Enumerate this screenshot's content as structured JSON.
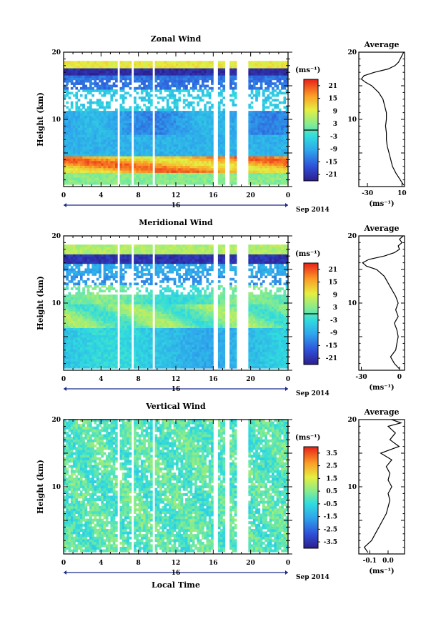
{
  "common": {
    "ylabel": "Height (km)",
    "y_ticks": [
      "10",
      "20"
    ],
    "x_ticks": [
      "0",
      "4",
      "8",
      "12",
      "16",
      "20",
      "0"
    ],
    "date_mark": "16",
    "date_suffix": "Sep 2014",
    "unit": "(ms⁻¹)",
    "xlabel": "Local Time",
    "average_title": "Average"
  },
  "chart_data": [
    {
      "type": "heatmap",
      "title": "Zonal Wind",
      "xlabel": "",
      "ylabel": "Height (km)",
      "xlim": [
        0,
        24
      ],
      "ylim": [
        0,
        20
      ],
      "colorbar": {
        "ticks": [
          "21",
          "15",
          "9",
          "3",
          "-3",
          "-9",
          "-15",
          "-21"
        ],
        "range": [
          -24,
          24
        ]
      },
      "profile": {
        "title": "Average",
        "xlabel": "(ms⁻¹)",
        "xticks": [
          "-30",
          "10"
        ],
        "xlim": [
          -40,
          13
        ],
        "heights": [
          0.2,
          1,
          2,
          3,
          4,
          5,
          6,
          7,
          8,
          9,
          10,
          11,
          12,
          13,
          14,
          15,
          15.5,
          16,
          16.5,
          17,
          17.5,
          18,
          18.5,
          19,
          19.5,
          20
        ],
        "values": [
          12,
          8,
          3,
          -1,
          -3,
          -5,
          -7,
          -8,
          -8,
          -9,
          -8,
          -8,
          -10,
          -12,
          -17,
          -25,
          -32,
          -37,
          -34,
          -22,
          -6,
          2,
          6,
          8,
          10,
          12
        ]
      }
    },
    {
      "type": "heatmap",
      "title": "Meridional Wind",
      "xlabel": "",
      "ylabel": "Height (km)",
      "xlim": [
        0,
        24
      ],
      "ylim": [
        0,
        20
      ],
      "colorbar": {
        "ticks": [
          "21",
          "15",
          "9",
          "3",
          "-3",
          "-9",
          "-15",
          "-21"
        ],
        "range": [
          -24,
          24
        ]
      },
      "profile": {
        "title": "Average",
        "xlabel": "(ms⁻¹)",
        "xticks": [
          "-30",
          "0"
        ],
        "xlim": [
          -32,
          4
        ],
        "heights": [
          0.2,
          1,
          2,
          3,
          4,
          5,
          6,
          7,
          8,
          9,
          10,
          11,
          12,
          13,
          14,
          15,
          15.5,
          16,
          16.5,
          17,
          17.5,
          18,
          18.5,
          19,
          19.5,
          20
        ],
        "values": [
          0,
          -4,
          -7,
          -3,
          -2,
          -1,
          -2,
          -4,
          -1,
          -3,
          -1,
          -3,
          -6,
          -9,
          -12,
          -18,
          -26,
          -29,
          -24,
          -12,
          -4,
          0,
          -1,
          2,
          0,
          3
        ]
      }
    },
    {
      "type": "heatmap",
      "title": "Vertical Wind",
      "xlabel": "Local Time",
      "ylabel": "Height (km)",
      "xlim": [
        0,
        24
      ],
      "ylim": [
        0,
        20
      ],
      "colorbar": {
        "ticks": [
          "3.5",
          "2.5",
          "1.5",
          "0.5",
          "-0.5",
          "-1.5",
          "-2.5",
          "-3.5"
        ],
        "range": [
          -4,
          4
        ]
      },
      "profile": {
        "title": "Average",
        "xlabel": "(ms⁻¹)",
        "xticks": [
          "-0.1",
          "0.0"
        ],
        "xlim": [
          -0.16,
          0.09
        ],
        "heights": [
          0.2,
          1,
          2,
          3,
          4,
          5,
          6,
          7,
          8,
          9,
          10,
          11,
          12,
          13,
          14,
          15,
          16,
          17,
          18,
          19,
          19.5,
          20
        ],
        "values": [
          -0.11,
          -0.13,
          -0.09,
          -0.07,
          -0.05,
          -0.03,
          -0.01,
          0.0,
          0.01,
          0.0,
          0.02,
          0.0,
          0.01,
          -0.01,
          0.02,
          -0.04,
          0.06,
          0.01,
          0.04,
          0.0,
          0.07,
          0.02
        ]
      }
    }
  ]
}
